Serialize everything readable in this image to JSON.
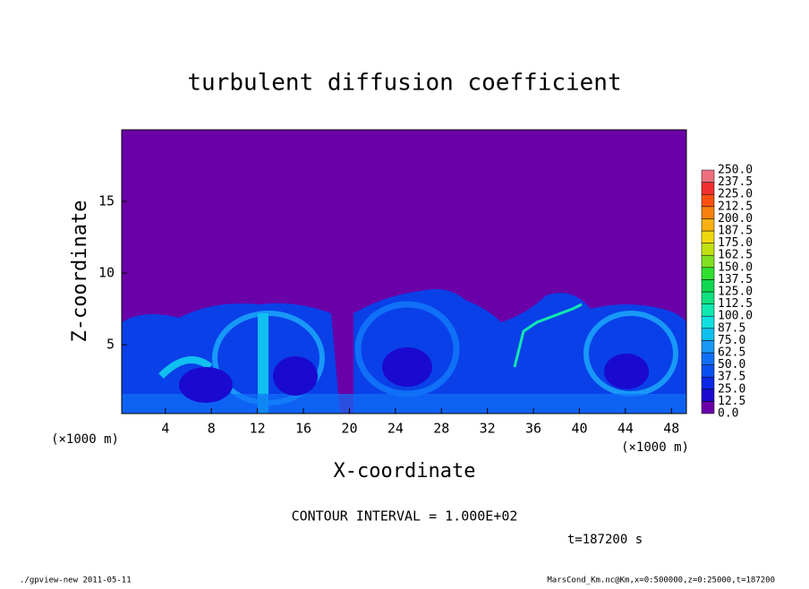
{
  "chart_data": {
    "type": "contour",
    "title": "turbulent diffusion coefficient",
    "xlabel": "X-coordinate",
    "ylabel": "Z-coordinate",
    "x_unit": "(×1000 m)",
    "xlim": [
      0.2,
      49.3
    ],
    "ylim": [
      0.2,
      20
    ],
    "xticks": [
      4,
      8,
      12,
      16,
      20,
      24,
      28,
      32,
      36,
      40,
      44,
      48
    ],
    "yticks": [
      5,
      10,
      15
    ],
    "levels": [
      {
        "value": 0,
        "label": "0.0"
      },
      {
        "value": 12.5,
        "label": "12.5"
      },
      {
        "value": 25,
        "label": "25.0"
      },
      {
        "value": 37.5,
        "label": "37.5"
      },
      {
        "value": 50,
        "label": "50.0"
      },
      {
        "value": 62.5,
        "label": "62.5"
      },
      {
        "value": 75,
        "label": "75.0"
      },
      {
        "value": 87.5,
        "label": "87.5"
      },
      {
        "value": 100,
        "label": "100.0"
      },
      {
        "value": 112.5,
        "label": "112.5"
      },
      {
        "value": 125,
        "label": "125.0"
      },
      {
        "value": 137.5,
        "label": "137.5"
      },
      {
        "value": 150,
        "label": "150.0"
      },
      {
        "value": 162.5,
        "label": "162.5"
      },
      {
        "value": 175,
        "label": "175.0"
      },
      {
        "value": 187.5,
        "label": "187.5"
      },
      {
        "value": 200,
        "label": "200.0"
      },
      {
        "value": 212.5,
        "label": "212.5"
      },
      {
        "value": 225,
        "label": "225.0"
      },
      {
        "value": 237.5,
        "label": "237.5"
      },
      {
        "value": 250,
        "label": "250.0"
      }
    ],
    "colors": [
      "#6a00a8",
      "#1a0ad0",
      "#0a28e6",
      "#0a50f0",
      "#1070f8",
      "#1898f8",
      "#10c0f0",
      "#10e0e0",
      "#10e8b0",
      "#10e080",
      "#10d850",
      "#30e030",
      "#80e020",
      "#c0e010",
      "#f0d810",
      "#f8b010",
      "#f88010",
      "#f85010",
      "#f03030",
      "#f07080"
    ],
    "contour_interval": "CONTOUR INTERVAL = 1.000E+02",
    "time": "t=187200 s",
    "footer_left": "./gpview-new  2011-05-11",
    "footer_right": "MarsCond_Km.nc@Km,x=0:500000,z=0:25000,t=187200"
  }
}
